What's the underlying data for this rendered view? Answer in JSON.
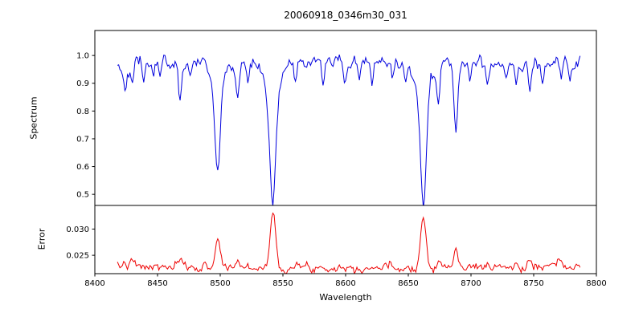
{
  "title": "20060918_0346m30_031",
  "axes": {
    "xlabel": "Wavelength",
    "x_ticks": {
      "values": [
        8400,
        8450,
        8500,
        8550,
        8600,
        8650,
        8700,
        8750,
        8800
      ],
      "labels": [
        "8400",
        "8450",
        "8500",
        "8550",
        "8600",
        "8650",
        "8700",
        "8750",
        "8800"
      ],
      "lim": [
        8400,
        8800
      ]
    },
    "top": {
      "ylabel": "Spectrum",
      "y_ticks": {
        "values": [
          0.5,
          0.6,
          0.7,
          0.8,
          0.9,
          1.0
        ],
        "labels": [
          "0.5",
          "0.6",
          "0.7",
          "0.8",
          "0.9",
          "1.0"
        ]
      },
      "ylim": [
        0.46,
        1.09
      ]
    },
    "bottom": {
      "ylabel": "Error",
      "y_ticks": {
        "values": [
          0.025,
          0.03
        ],
        "labels": [
          "0.025",
          "0.030"
        ]
      },
      "ylim": [
        0.0215,
        0.0345
      ]
    }
  },
  "colors": {
    "spectrum": "#0000dd",
    "error": "#ee0000",
    "axis": "#000000",
    "background": "#ffffff"
  },
  "chart_data": [
    {
      "type": "line",
      "name": "Spectrum",
      "panel": "top",
      "color": "#0000dd",
      "x_range": [
        8418,
        8787
      ],
      "step": 1,
      "continuum": 0.975,
      "noise_sigma": 0.011,
      "noise_ar": 0.55,
      "seed": 42,
      "grid": false,
      "legend": false,
      "absorption_lines": [
        {
          "center": 8424,
          "depth": 0.1,
          "width": 1.2
        },
        {
          "center": 8430,
          "depth": 0.09,
          "width": 1.1
        },
        {
          "center": 8439,
          "depth": 0.06,
          "width": 1.0
        },
        {
          "center": 8447,
          "depth": 0.05,
          "width": 1.0
        },
        {
          "center": 8452,
          "depth": 0.05,
          "width": 0.9
        },
        {
          "center": 8468,
          "depth": 0.13,
          "width": 1.2
        },
        {
          "center": 8476,
          "depth": 0.06,
          "width": 1.0
        },
        {
          "center": 8498,
          "depth": 0.33,
          "width": 2.2,
          "wing_depth": 0.05,
          "wing_width": 7
        },
        {
          "center": 8514,
          "depth": 0.13,
          "width": 1.3
        },
        {
          "center": 8522,
          "depth": 0.07,
          "width": 1.0
        },
        {
          "center": 8542,
          "depth": 0.44,
          "width": 2.6,
          "wing_depth": 0.06,
          "wing_width": 8
        },
        {
          "center": 8560,
          "depth": 0.05,
          "width": 1.0
        },
        {
          "center": 8582,
          "depth": 0.09,
          "width": 1.1
        },
        {
          "center": 8599,
          "depth": 0.08,
          "width": 1.1
        },
        {
          "center": 8611,
          "depth": 0.06,
          "width": 1.0
        },
        {
          "center": 8621,
          "depth": 0.09,
          "width": 1.1
        },
        {
          "center": 8637,
          "depth": 0.05,
          "width": 1.0
        },
        {
          "center": 8648,
          "depth": 0.07,
          "width": 1.0
        },
        {
          "center": 8662,
          "depth": 0.43,
          "width": 2.4,
          "wing_depth": 0.06,
          "wing_width": 8
        },
        {
          "center": 8674,
          "depth": 0.13,
          "width": 1.2
        },
        {
          "center": 8688,
          "depth": 0.26,
          "width": 1.5
        },
        {
          "center": 8699,
          "depth": 0.06,
          "width": 1.0
        },
        {
          "center": 8713,
          "depth": 0.09,
          "width": 1.1
        },
        {
          "center": 8728,
          "depth": 0.05,
          "width": 1.0
        },
        {
          "center": 8736,
          "depth": 0.07,
          "width": 1.0
        },
        {
          "center": 8747,
          "depth": 0.09,
          "width": 1.1
        },
        {
          "center": 8757,
          "depth": 0.06,
          "width": 1.0
        },
        {
          "center": 8772,
          "depth": 0.06,
          "width": 1.0
        },
        {
          "center": 8779,
          "depth": 0.05,
          "width": 0.9
        }
      ]
    },
    {
      "type": "line",
      "name": "Error",
      "panel": "bottom",
      "color": "#ee0000",
      "x_range": [
        8418,
        8787
      ],
      "step": 1,
      "baseline": 0.0227,
      "noise_sigma": 0.00038,
      "noise_ar": 0.5,
      "seed": 7,
      "grid": false,
      "legend": false,
      "peaks": [
        {
          "center": 8424,
          "amp": 0.001,
          "width": 1.5
        },
        {
          "center": 8430,
          "amp": 0.0012,
          "width": 1.5
        },
        {
          "center": 8468,
          "amp": 0.0012,
          "width": 1.5
        },
        {
          "center": 8498,
          "amp": 0.0055,
          "width": 2.0
        },
        {
          "center": 8514,
          "amp": 0.0013,
          "width": 1.5
        },
        {
          "center": 8542,
          "amp": 0.0102,
          "width": 2.2
        },
        {
          "center": 8662,
          "amp": 0.0094,
          "width": 2.2
        },
        {
          "center": 8674,
          "amp": 0.0015,
          "width": 1.5
        },
        {
          "center": 8688,
          "amp": 0.0035,
          "width": 1.5
        },
        {
          "center": 8713,
          "amp": 0.001,
          "width": 1.5
        },
        {
          "center": 8747,
          "amp": 0.0013,
          "width": 1.5
        },
        {
          "center": 8772,
          "amp": 0.0012,
          "width": 1.5
        }
      ]
    }
  ]
}
